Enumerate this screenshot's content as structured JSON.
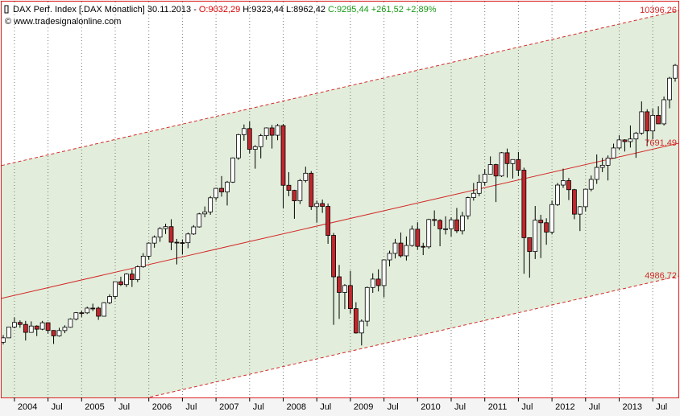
{
  "header": {
    "instrument": "DAX Perf. Index [.DAX  Monatlich] 30.11.2013 -",
    "open": "O:9032,29",
    "high": "H:9323,44",
    "low": "L:8962,42",
    "close": "C:9295,44 +261,52 +2,89%",
    "source": "© www.tradesignalonline.com"
  },
  "chart_data": {
    "type": "candlestick",
    "categories": [
      null,
      null,
      "2004",
      null,
      null,
      null,
      null,
      null,
      "Jul",
      null,
      null,
      null,
      null,
      null,
      "2005",
      null,
      null,
      null,
      null,
      null,
      "Jul",
      null,
      null,
      null,
      null,
      null,
      "2006",
      null,
      null,
      null,
      null,
      null,
      "Jul",
      null,
      null,
      null,
      null,
      null,
      "2007",
      null,
      null,
      null,
      null,
      null,
      "Jul",
      null,
      null,
      null,
      null,
      null,
      "2008",
      null,
      null,
      null,
      null,
      null,
      "Jul",
      null,
      null,
      null,
      null,
      null,
      "2009",
      null,
      null,
      null,
      null,
      null,
      "Jul",
      null,
      null,
      null,
      null,
      null,
      "2010",
      null,
      null,
      null,
      null,
      null,
      "Jul",
      null,
      null,
      null,
      null,
      null,
      "2011",
      null,
      null,
      null,
      null,
      null,
      "Jul",
      null,
      null,
      null,
      null,
      null,
      "2012",
      null,
      null,
      null,
      null,
      null,
      "Jul",
      null,
      null,
      null,
      null,
      null,
      "2013",
      null,
      null,
      null,
      null,
      null,
      "Jul",
      null,
      null,
      null,
      null
    ],
    "open": [
      3655,
      3745,
      3965,
      4058,
      4018,
      3856,
      3985,
      3921,
      4052,
      3895,
      3785,
      3893,
      3960,
      4126,
      4256,
      4254,
      4350,
      4349,
      4185,
      4460,
      4586,
      4887,
      4829,
      5044,
      4929,
      5193,
      5408,
      5674,
      5796,
      5970,
      6009,
      5692,
      5683,
      5682,
      5860,
      6004,
      6269,
      6309,
      6597,
      6789,
      6716,
      6917,
      7409,
      7883,
      8007,
      7584,
      7638,
      7862,
      8020,
      7871,
      8067,
      6852,
      6748,
      6535,
      6949,
      7097,
      6418,
      6480,
      6422,
      5831,
      4988,
      4669,
      4810,
      4339,
      3844,
      4085,
      4770,
      4941,
      4809,
      5332,
      5465,
      5675,
      5415,
      5626,
      5957,
      5608,
      5598,
      6154,
      6136,
      5965,
      5966,
      6148,
      5925,
      6229,
      6601,
      6688,
      6914,
      7077,
      7273,
      7041,
      7514,
      7294,
      7376,
      7159,
      5785,
      5502,
      6141,
      6089,
      5898,
      6459,
      6856,
      6947,
      6762,
      6264,
      6416,
      6772,
      6971,
      7216,
      7260,
      7406,
      7612,
      7776,
      7742,
      7795,
      7914,
      8349,
      7959,
      8276,
      8103,
      8594,
      9032.29
    ],
    "high": [
      3800,
      3970,
      4160,
      4100,
      4090,
      4080,
      4000,
      4090,
      4060,
      3900,
      3950,
      4000,
      4140,
      4270,
      4300,
      4380,
      4440,
      4380,
      4470,
      4630,
      4890,
      4990,
      5060,
      5140,
      5220,
      5470,
      5690,
      5830,
      6000,
      6070,
      6160,
      5760,
      5750,
      5890,
      6040,
      6290,
      6420,
      6630,
      6800,
      7040,
      6940,
      7420,
      7900,
      8090,
      8150,
      7670,
      7900,
      8030,
      8080,
      8100,
      8100,
      7120,
      6760,
      6980,
      7230,
      7140,
      6540,
      6560,
      6480,
      5880,
      5230,
      4840,
      5110,
      4470,
      4120,
      4790,
      5060,
      5140,
      5340,
      5520,
      5760,
      5890,
      5810,
      6030,
      6100,
      5680,
      6170,
      6340,
      6160,
      6220,
      6200,
      6390,
      6310,
      6620,
      6900,
      7070,
      7180,
      7440,
      7290,
      7530,
      7600,
      7380,
      7530,
      7210,
      5780,
      6430,
      6250,
      6180,
      6540,
      6900,
      7190,
      7000,
      6780,
      6430,
      6780,
      7050,
      7480,
      7410,
      7460,
      7700,
      7870,
      7790,
      8070,
      7940,
      8560,
      8400,
      8410,
      8460,
      8660,
      9060,
      9323.44
    ],
    "low": [
      3610,
      3740,
      3940,
      3950,
      3690,
      3850,
      3780,
      3900,
      3830,
      3620,
      3770,
      3840,
      3950,
      4100,
      4170,
      4230,
      4290,
      4110,
      4180,
      4430,
      4530,
      4800,
      4780,
      4780,
      4880,
      5170,
      5340,
      5580,
      5700,
      5860,
      5530,
      5240,
      5440,
      5570,
      5840,
      5990,
      6200,
      6250,
      6540,
      6620,
      6440,
      6900,
      7370,
      7760,
      7500,
      7190,
      7400,
      7780,
      7600,
      7770,
      6380,
      6630,
      6170,
      6470,
      6910,
      6350,
      6090,
      6290,
      5660,
      4010,
      4130,
      4330,
      4240,
      3830,
      3590,
      3980,
      4660,
      4690,
      4570,
      5200,
      5360,
      5380,
      5320,
      5600,
      5540,
      5430,
      5560,
      6020,
      5610,
      5850,
      5810,
      5880,
      5850,
      6160,
      6540,
      6630,
      6850,
      7070,
      6510,
      7020,
      7010,
      6990,
      7040,
      5050,
      4970,
      5350,
      5370,
      5640,
      5850,
      6430,
      6800,
      6550,
      6160,
      5920,
      6320,
      6730,
      6880,
      7120,
      6950,
      7400,
      7580,
      7540,
      7620,
      7410,
      7880,
      7650,
      7790,
      8100,
      8070,
      8420,
      8962.42
    ],
    "close": [
      3745,
      3965,
      4058,
      4018,
      3856,
      3985,
      3921,
      4052,
      3895,
      3785,
      3893,
      3960,
      4126,
      4256,
      4254,
      4350,
      4349,
      4185,
      4460,
      4586,
      4887,
      4829,
      5044,
      4929,
      5193,
      5408,
      5674,
      5796,
      5970,
      6009,
      5692,
      5683,
      5682,
      5860,
      6004,
      6269,
      6309,
      6597,
      6789,
      6716,
      6917,
      7409,
      7883,
      8007,
      7584,
      7638,
      7862,
      8020,
      7871,
      8067,
      6852,
      6748,
      6535,
      6949,
      7097,
      6418,
      6480,
      6422,
      5831,
      4988,
      4669,
      4810,
      4339,
      3844,
      4085,
      4770,
      4941,
      4809,
      5332,
      5465,
      5675,
      5415,
      5626,
      5957,
      5608,
      5598,
      6154,
      6136,
      5965,
      5966,
      6148,
      5925,
      6229,
      6601,
      6688,
      6914,
      7077,
      7273,
      7041,
      7514,
      7294,
      7376,
      7159,
      5785,
      5502,
      6141,
      6089,
      5898,
      6459,
      6856,
      6947,
      6762,
      6264,
      6416,
      6772,
      6971,
      7216,
      7260,
      7406,
      7612,
      7776,
      7742,
      7795,
      7914,
      8349,
      7959,
      8276,
      8103,
      8594,
      9033,
      9295.44
    ],
    "up_color": "#ffffff",
    "down_color": "#c0272d",
    "band_color": "#e2eedb",
    "ylim": [
      2530,
      10560
    ],
    "grid": true,
    "channels": [
      {
        "style": "dashed",
        "color": "#d42a2a",
        "values": [
          7262,
          10396.26
        ],
        "value_labels": [
          null,
          "10396,26"
        ]
      },
      {
        "style": "solid",
        "color": "#d42a2a",
        "values": [
          4558,
          7691.49
        ],
        "value_labels": [
          null,
          "7691,49"
        ]
      },
      {
        "style": "dashed",
        "color": "#d42a2a",
        "values": [
          1854,
          4986.72
        ],
        "value_labels": [
          null,
          "4986,72"
        ]
      }
    ]
  }
}
